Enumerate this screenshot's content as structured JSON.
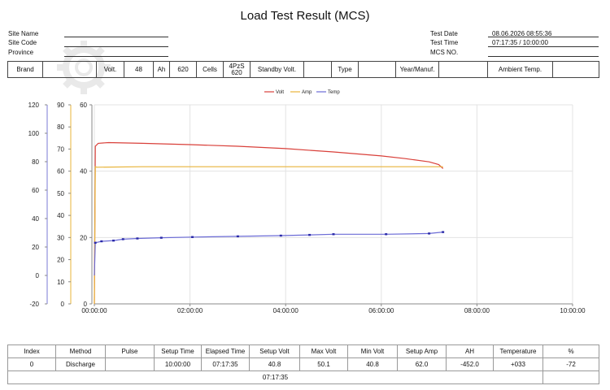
{
  "page": {
    "title": "Load Test Result (MCS)"
  },
  "header": {
    "site_name_label": "Site Name",
    "site_code_label": "Site Code",
    "province_label": "Province",
    "site_name": "",
    "site_code": "",
    "province": "",
    "test_date_label": "Test Date",
    "test_date": "08.06.2026 08:55:36",
    "test_time_label": "Test Time",
    "test_time": "07:17:35 / 10:00:00",
    "mcs_no_label": "MCS NO.",
    "mcs_no": ""
  },
  "infobar": {
    "brand_label": "Brand",
    "brand": "",
    "volt_label": "Volt.",
    "volt": "48",
    "ah_label": "Ah",
    "ah": "620",
    "cells_label": "Cells",
    "cells_line1": "4PzS",
    "cells_line2": "620",
    "standby_label": "Standby Volt.",
    "standby": "",
    "type_label": "Type",
    "type": "",
    "year_label": "Year/Manuf.",
    "year": "",
    "ambient_label": "Ambient Temp.",
    "ambient": ""
  },
  "chart_data": {
    "type": "line",
    "legend_placement": "top-center",
    "grid": true,
    "x_ticks": [
      "00:00:00",
      "02:00:00",
      "04:00:00",
      "06:00:00",
      "08:00:00",
      "10:00:00"
    ],
    "x_range_hours": [
      0,
      10
    ],
    "axes": {
      "temp": {
        "range": [
          -20,
          120
        ],
        "ticks": [
          "120",
          "100",
          "80",
          "60",
          "40",
          "20",
          "0",
          "-20"
        ],
        "color": "#7b7bd6"
      },
      "amp": {
        "range": [
          0,
          90
        ],
        "ticks": [
          "90",
          "80",
          "70",
          "60",
          "50",
          "40",
          "30",
          "20",
          "10",
          "0"
        ],
        "color": "#e8b43a"
      },
      "volt": {
        "range": [
          0,
          60
        ],
        "ticks": [
          "60",
          "40",
          "20",
          "0"
        ],
        "color": "#555555"
      }
    },
    "series": [
      {
        "name": "Volt",
        "color": "#d9403a",
        "axis": "volt",
        "x": [
          0,
          0.02,
          0.08,
          0.3,
          1.0,
          2.0,
          3.0,
          4.0,
          5.0,
          6.0,
          6.5,
          7.0,
          7.2,
          7.29
        ],
        "y": [
          0,
          47.5,
          48.4,
          48.6,
          48.4,
          48.0,
          47.5,
          46.8,
          45.8,
          44.6,
          43.8,
          42.8,
          42.0,
          40.8
        ]
      },
      {
        "name": "Amp",
        "color": "#e8b43a",
        "axis": "amp",
        "x": [
          0,
          0.02,
          0.05,
          1.0,
          2.0,
          3.0,
          4.0,
          5.0,
          6.0,
          7.0,
          7.29
        ],
        "y": [
          0,
          62.0,
          61.8,
          62.0,
          62.0,
          62.0,
          62.0,
          62.0,
          62.0,
          62.0,
          62.0
        ]
      },
      {
        "name": "Temp",
        "color": "#6b6bd6",
        "axis": "temp",
        "x": [
          0,
          0.02,
          0.15,
          0.4,
          0.6,
          0.9,
          1.4,
          2.05,
          3.0,
          3.9,
          4.5,
          5.0,
          6.1,
          7.0,
          7.29
        ],
        "y": [
          0,
          23.0,
          24.0,
          24.5,
          25.5,
          26.0,
          26.5,
          27.0,
          27.5,
          28.0,
          28.5,
          29.0,
          29.0,
          29.5,
          30.5
        ]
      }
    ]
  },
  "results": {
    "headers": [
      "Index",
      "Method",
      "Pulse",
      "Setup Time",
      "Elapsed Time",
      "Setup Volt",
      "Max Volt",
      "Min Volt",
      "Setup Amp",
      "AH",
      "Temperature",
      "%"
    ],
    "row": [
      "0",
      "Discharge",
      "",
      "10:00:00",
      "07:17:35",
      "40.8",
      "50.1",
      "40.8",
      "62.0",
      "-452.0",
      "+033",
      "-72"
    ],
    "footer": "07:17:35"
  }
}
